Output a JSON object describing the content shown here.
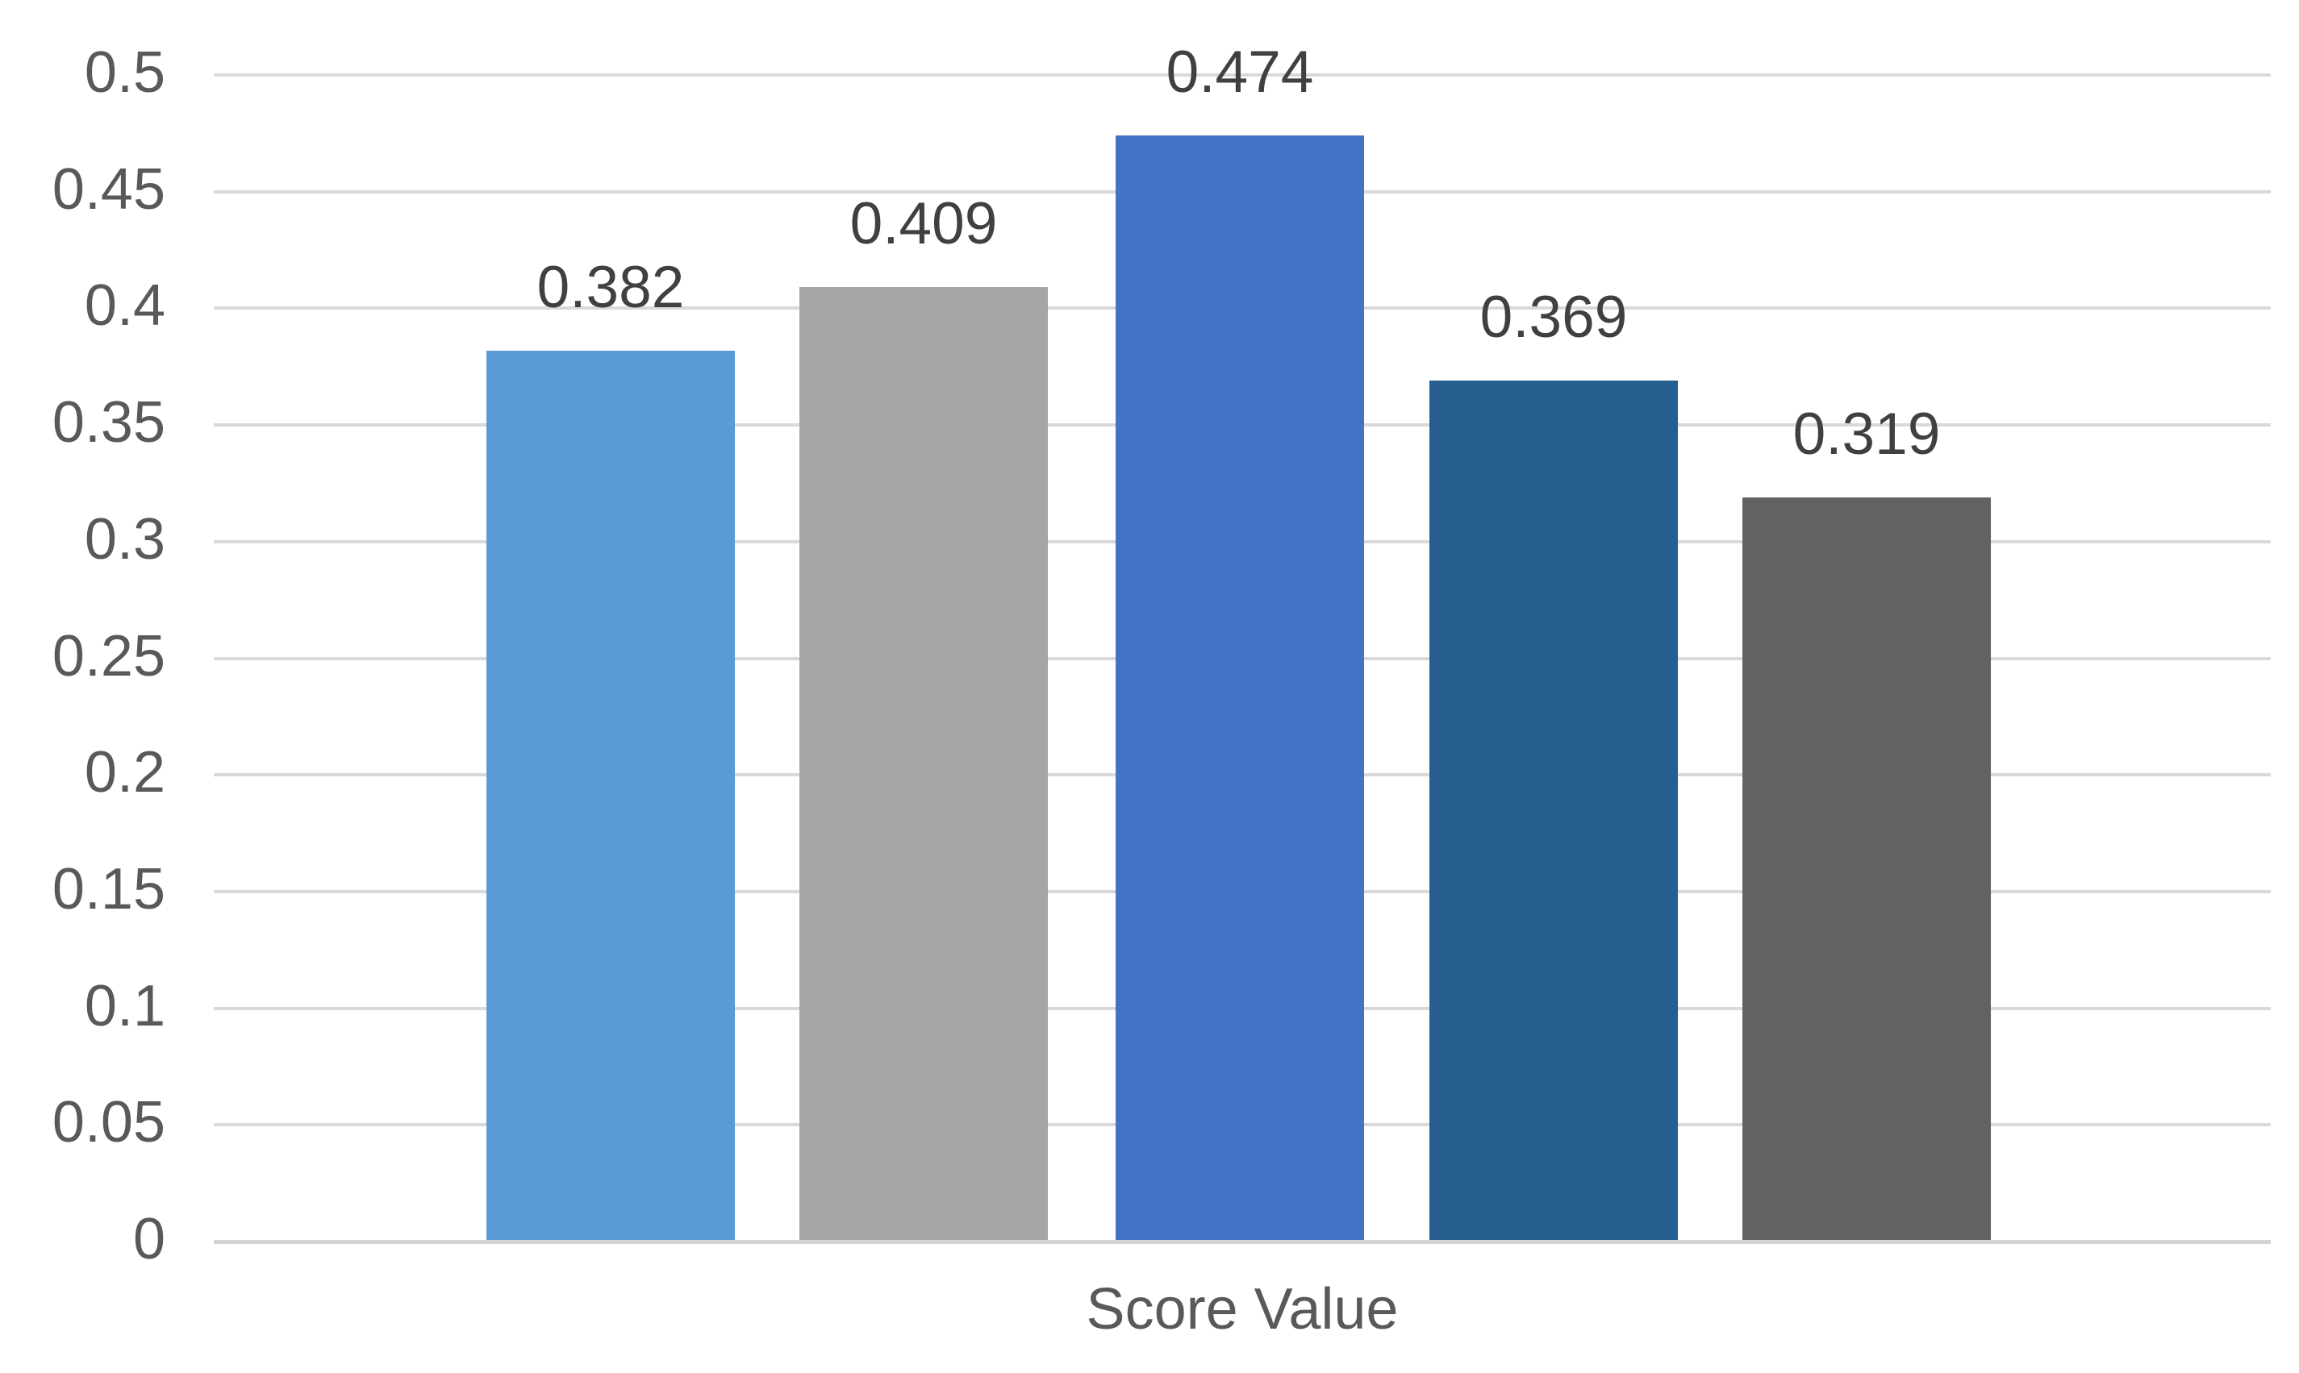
{
  "chart_data": {
    "type": "bar",
    "title": "",
    "xlabel": "Score Value",
    "ylabel": "",
    "ylim": [
      0,
      0.5
    ],
    "ytick_step": 0.05,
    "yticks": [
      "0",
      "0.05",
      "0.1",
      "0.15",
      "0.2",
      "0.25",
      "0.3",
      "0.35",
      "0.4",
      "0.45",
      "0.5"
    ],
    "grid": true,
    "legend": false,
    "values": [
      0.382,
      0.409,
      0.474,
      0.369,
      0.319
    ],
    "data_labels": [
      "0.382",
      "0.409",
      "0.474",
      "0.369",
      "0.319"
    ],
    "bar_colors": [
      "#5B9BD5",
      "#A6A6A6",
      "#4472C4",
      "#265F8F",
      "#626262"
    ],
    "colors": {
      "gridline": "#D9D9D9",
      "axis_line": "#D3D3D3",
      "tick_label": "#595959",
      "data_label": "#404040",
      "axis_title": "#595959",
      "background": "#FFFFFF"
    }
  }
}
